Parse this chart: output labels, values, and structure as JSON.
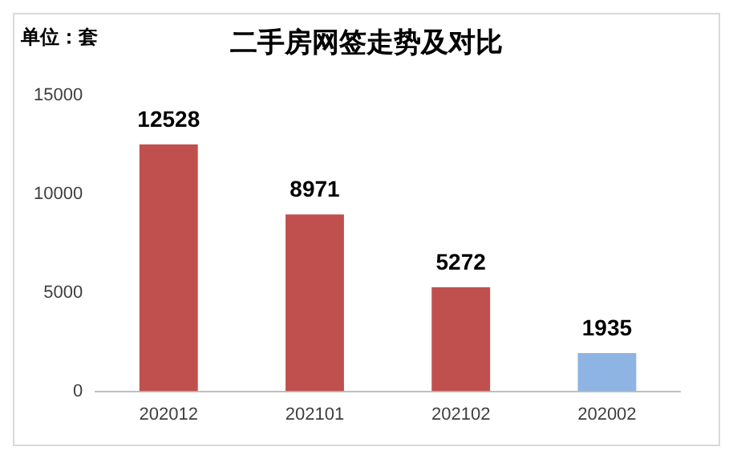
{
  "chart_data": {
    "type": "bar",
    "title": "二手房网签走势及对比",
    "annotations": [
      "单位：套"
    ],
    "categories": [
      "202012",
      "202101",
      "202102",
      "202002"
    ],
    "values": [
      12528,
      8971,
      5272,
      1935
    ],
    "colors": [
      "#c0504d",
      "#c0504d",
      "#c0504d",
      "#8db4e2"
    ],
    "ylim": [
      0,
      15000
    ],
    "yticks": [
      0,
      5000,
      10000,
      15000
    ],
    "data_labels": true,
    "grid": false,
    "legend": false
  }
}
